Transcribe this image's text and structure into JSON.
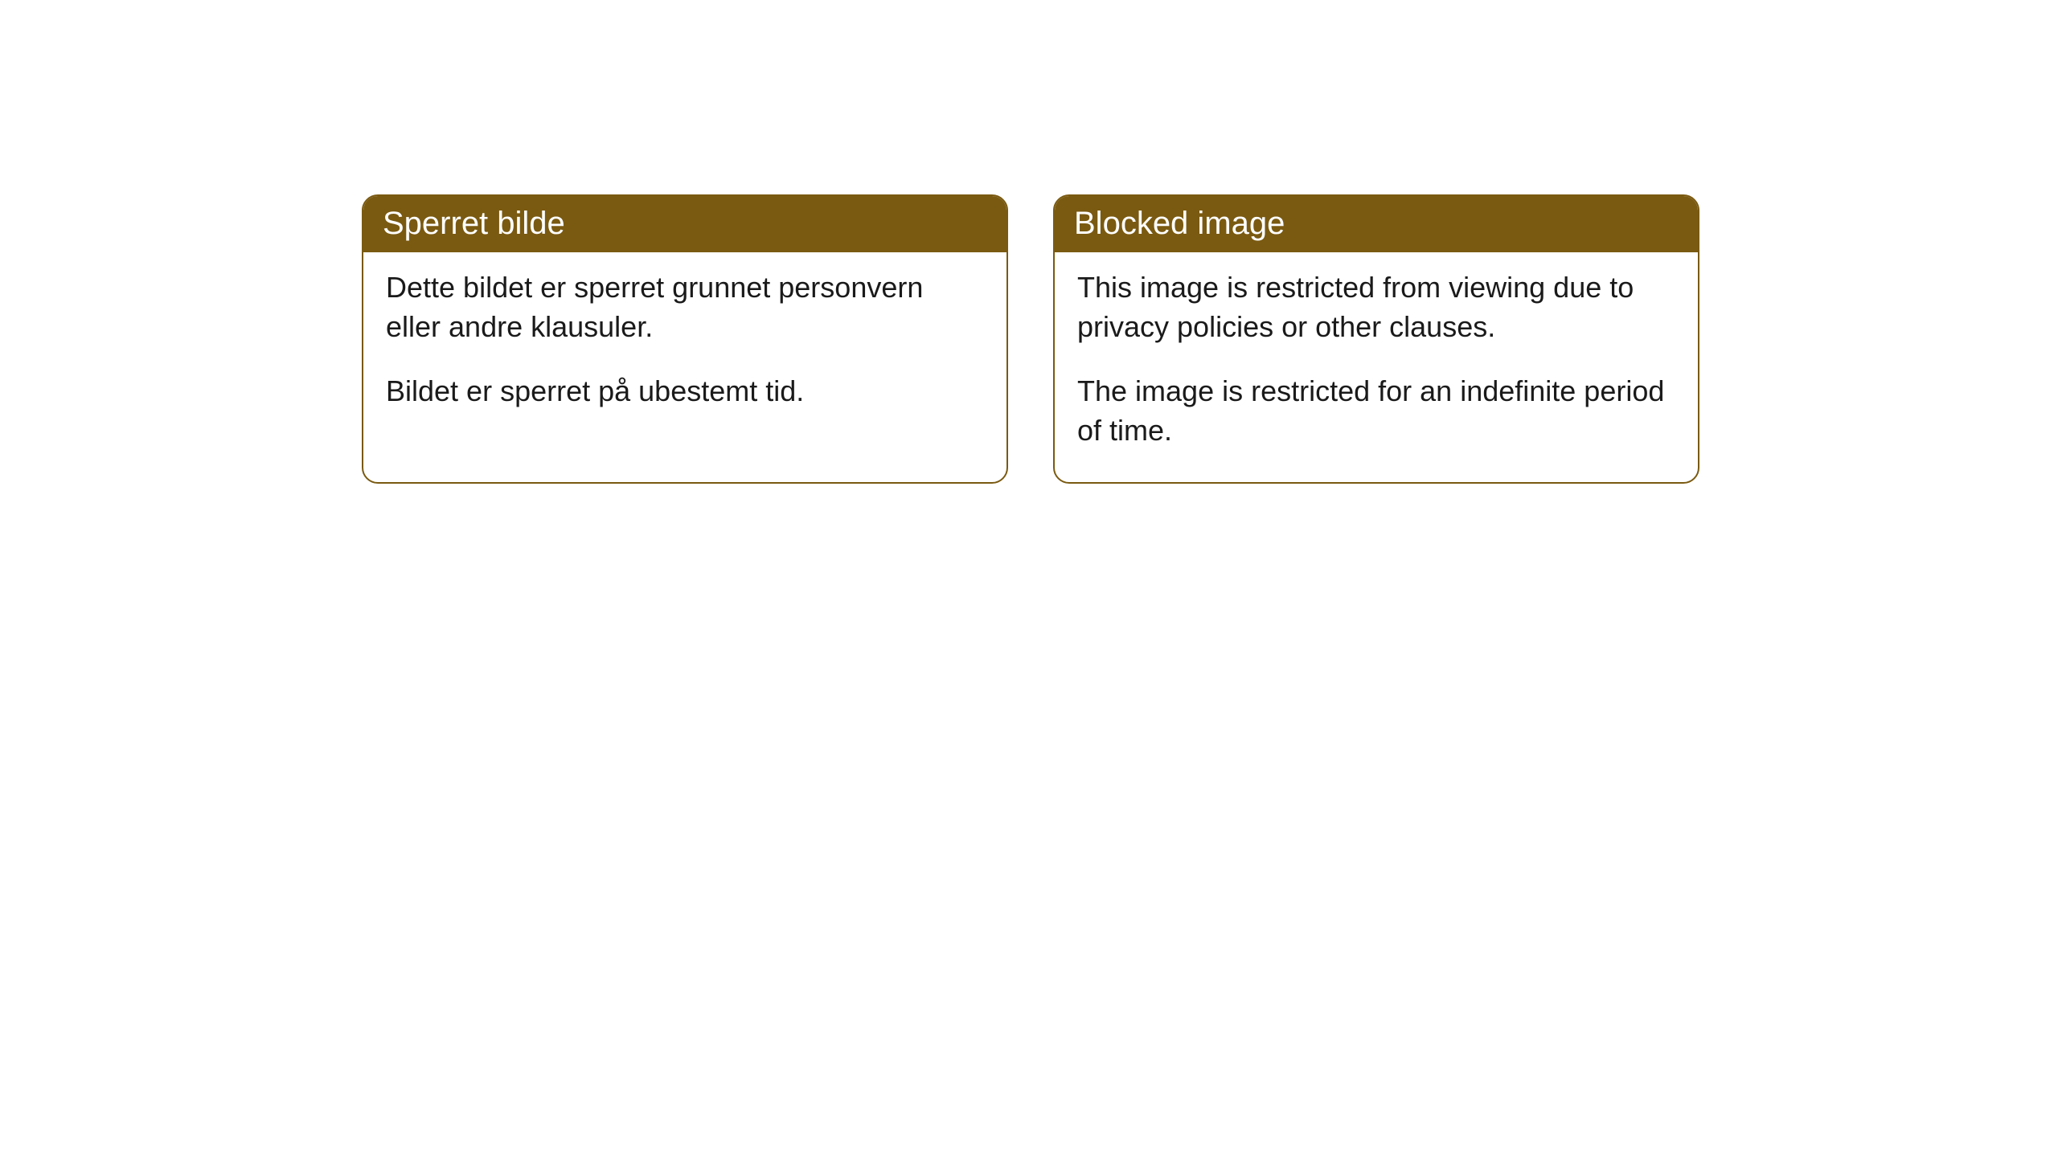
{
  "cards": [
    {
      "title": "Sperret bilde",
      "paragraph1": "Dette bildet er sperret grunnet personvern eller andre klausuler.",
      "paragraph2": "Bildet er sperret på ubestemt tid."
    },
    {
      "title": "Blocked image",
      "paragraph1": "This image is restricted from viewing due to privacy policies or other clauses.",
      "paragraph2": "The image is restricted for an indefinite period of time."
    }
  ],
  "style": {
    "header_background": "#7a5a11",
    "header_text_color": "#ffffff",
    "body_background": "#ffffff",
    "body_text_color": "#1a1a1a",
    "border_color": "#7a5a11",
    "border_radius": 20,
    "title_fontsize": 40,
    "body_fontsize": 36
  }
}
